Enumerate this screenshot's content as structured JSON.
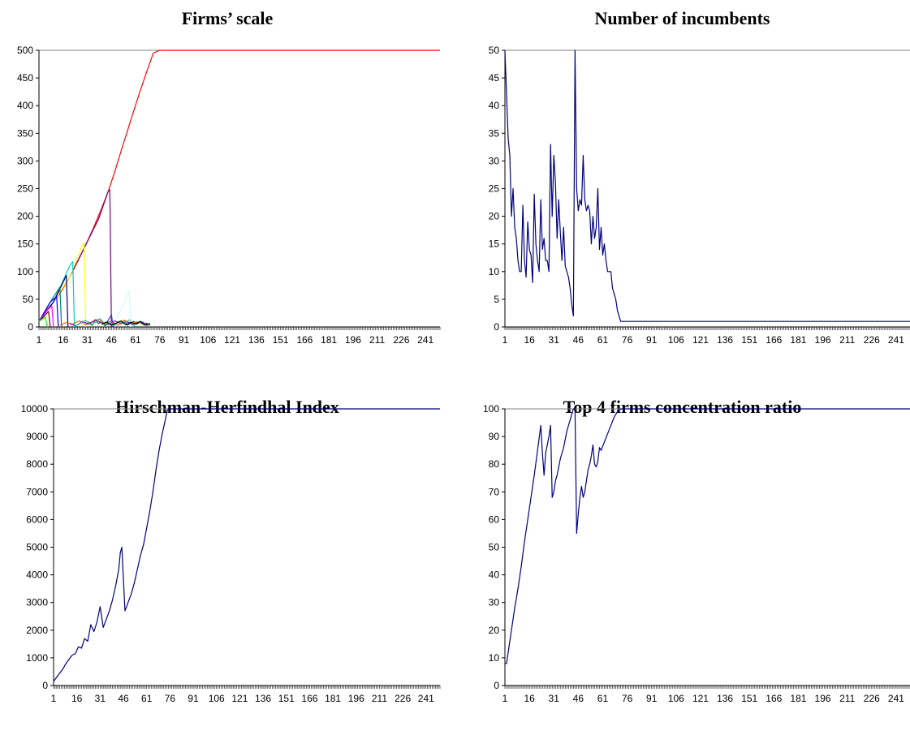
{
  "chart_data": [
    {
      "id": "firms-scale",
      "type": "line",
      "title": "Firms’ scale",
      "xlabel": "",
      "ylabel": "",
      "ylim": [
        0,
        500
      ],
      "yticks": [
        0,
        50,
        100,
        150,
        200,
        250,
        300,
        350,
        400,
        450,
        500
      ],
      "xlim": [
        1,
        250
      ],
      "xtick_labels": [
        "1",
        "16",
        "31",
        "46",
        "61",
        "76",
        "91",
        "106",
        "121",
        "136",
        "151",
        "166",
        "181",
        "196",
        "211",
        "226",
        "241"
      ],
      "grid": "top border only",
      "legend": "none",
      "series": [
        {
          "color": "#ff0000",
          "x": [
            1,
            5,
            10,
            15,
            20,
            25,
            30,
            35,
            40,
            44,
            48,
            52,
            56,
            60,
            64,
            68,
            72,
            76,
            250
          ],
          "y": [
            10,
            28,
            45,
            65,
            90,
            118,
            148,
            180,
            215,
            245,
            280,
            318,
            355,
            392,
            428,
            462,
            495,
            500,
            500
          ]
        },
        {
          "color": "#800080",
          "x": [
            1,
            10,
            20,
            30,
            38,
            44,
            45,
            46
          ],
          "y": [
            10,
            45,
            90,
            148,
            195,
            245,
            248,
            0
          ]
        },
        {
          "color": "#ffff00",
          "x": [
            1,
            10,
            20,
            28,
            29,
            30
          ],
          "y": [
            10,
            45,
            90,
            148,
            152,
            0
          ]
        },
        {
          "color": "#00cccc",
          "x": [
            1,
            10,
            20,
            22,
            23
          ],
          "y": [
            10,
            45,
            110,
            118,
            0
          ]
        },
        {
          "color": "#000080",
          "x": [
            1,
            10,
            18,
            19
          ],
          "y": [
            10,
            45,
            93,
            0
          ]
        },
        {
          "color": "#008080",
          "x": [
            1,
            8,
            14,
            15
          ],
          "y": [
            10,
            45,
            72,
            0
          ]
        },
        {
          "color": "#0000ff",
          "x": [
            1,
            8,
            12,
            13
          ],
          "y": [
            10,
            45,
            55,
            0
          ]
        },
        {
          "color": "#ff00ff",
          "x": [
            1,
            6,
            9,
            10
          ],
          "y": [
            10,
            30,
            38,
            0
          ]
        },
        {
          "color": "#800000",
          "x": [
            1,
            5,
            7,
            8
          ],
          "y": [
            10,
            22,
            28,
            0
          ]
        },
        {
          "color": "#00ff00",
          "x": [
            1,
            3,
            5,
            6
          ],
          "y": [
            10,
            14,
            18,
            0
          ]
        },
        {
          "color": "#ccffff",
          "x": [
            46,
            50,
            54,
            57,
            58
          ],
          "y": [
            2,
            20,
            45,
            65,
            0
          ]
        },
        {
          "color": "#3333cc",
          "x": [
            42,
            44,
            46,
            47
          ],
          "y": [
            2,
            12,
            22,
            0
          ]
        },
        {
          "color": "#008000",
          "x": [
            30,
            32,
            34,
            36,
            38,
            40,
            42,
            44,
            46,
            48,
            50,
            52,
            54,
            56,
            58,
            60,
            62,
            64,
            66,
            68,
            70
          ],
          "y": [
            4,
            9,
            3,
            12,
            6,
            10,
            2,
            8,
            11,
            4,
            9,
            6,
            12,
            3,
            8,
            10,
            5,
            9,
            4,
            7,
            3
          ]
        },
        {
          "color": "#ff6600",
          "x": [
            14,
            18,
            22,
            26,
            30,
            34,
            38,
            42,
            46,
            50,
            54,
            58,
            62,
            66,
            70
          ],
          "y": [
            3,
            8,
            5,
            11,
            4,
            9,
            14,
            6,
            10,
            3,
            12,
            7,
            9,
            4,
            6
          ]
        },
        {
          "color": "#9900cc",
          "x": [
            20,
            24,
            28,
            32,
            36,
            40,
            44,
            48,
            52,
            56,
            60,
            64,
            68
          ],
          "y": [
            6,
            2,
            10,
            5,
            13,
            7,
            4,
            11,
            6,
            9,
            3,
            10,
            5
          ]
        },
        {
          "color": "#33cc99",
          "x": [
            24,
            27,
            30,
            33,
            36,
            39,
            42,
            45,
            48,
            51,
            54,
            57,
            60,
            63,
            66,
            69
          ],
          "y": [
            2,
            7,
            12,
            4,
            8,
            15,
            5,
            9,
            3,
            10,
            6,
            13,
            4,
            8,
            5,
            2
          ]
        },
        {
          "color": "#000000",
          "x": [
            40,
            43,
            46,
            49,
            52,
            55,
            58,
            61,
            64,
            67,
            70
          ],
          "y": [
            5,
            9,
            3,
            7,
            11,
            4,
            8,
            6,
            10,
            3,
            6
          ]
        }
      ]
    },
    {
      "id": "number-of-incumbents",
      "type": "line",
      "title": "Number of incumbents",
      "xlabel": "",
      "ylabel": "",
      "ylim": [
        0,
        50
      ],
      "yticks": [
        0,
        5,
        10,
        15,
        20,
        25,
        30,
        35,
        40,
        45,
        50
      ],
      "xlim": [
        1,
        250
      ],
      "xtick_labels": [
        "1",
        "16",
        "31",
        "46",
        "61",
        "76",
        "91",
        "106",
        "121",
        "136",
        "151",
        "166",
        "181",
        "196",
        "211",
        "226",
        "241"
      ],
      "grid": "top border only",
      "legend": "none",
      "series": [
        {
          "color": "#000080",
          "x": [
            1,
            3,
            4,
            5,
            6,
            7,
            8,
            9,
            10,
            11,
            12,
            13,
            14,
            15,
            16,
            17,
            18,
            19,
            20,
            21,
            22,
            23,
            24,
            25,
            26,
            27,
            28,
            29,
            30,
            31,
            32,
            33,
            34,
            35,
            36,
            37,
            38,
            39,
            40,
            41,
            42,
            43,
            44,
            45,
            46,
            47,
            48,
            49,
            50,
            51,
            52,
            53,
            54,
            55,
            56,
            57,
            58,
            59,
            60,
            61,
            62,
            63,
            64,
            65,
            66,
            67,
            68,
            69,
            70,
            71,
            72,
            73,
            74,
            250
          ],
          "y": [
            50,
            34,
            31,
            20,
            25,
            18,
            16,
            12,
            10,
            10,
            22,
            12,
            9,
            19,
            14,
            13,
            8,
            24,
            15,
            12,
            10,
            23,
            14,
            16,
            12,
            12,
            10,
            33,
            20,
            31,
            26,
            16,
            23,
            17,
            12,
            18,
            11,
            10,
            9,
            7,
            4,
            2,
            50,
            25,
            21,
            23,
            22,
            31,
            23,
            21,
            22,
            21,
            15,
            20,
            16,
            18,
            25,
            14,
            18,
            13,
            15,
            12,
            10,
            10,
            10,
            7,
            6,
            5,
            3,
            2,
            1,
            1,
            1,
            1
          ]
        }
      ]
    },
    {
      "id": "hirschman-herfindhal-index",
      "type": "line",
      "title": "Hirschman-Herfindhal Index",
      "xlabel": "",
      "ylabel": "",
      "ylim": [
        0,
        10000
      ],
      "yticks": [
        0,
        1000,
        2000,
        3000,
        4000,
        5000,
        6000,
        7000,
        8000,
        9000,
        10000
      ],
      "xlim": [
        1,
        250
      ],
      "xtick_labels": [
        "1",
        "16",
        "31",
        "46",
        "61",
        "76",
        "91",
        "106",
        "121",
        "136",
        "151",
        "166",
        "181",
        "196",
        "211",
        "226",
        "241"
      ],
      "grid": "top border only",
      "legend": "none",
      "series": [
        {
          "color": "#000080",
          "x": [
            1,
            3,
            5,
            7,
            9,
            11,
            13,
            15,
            17,
            19,
            21,
            23,
            25,
            27,
            29,
            31,
            33,
            35,
            37,
            39,
            41,
            43,
            44,
            45,
            47,
            49,
            51,
            53,
            55,
            57,
            59,
            61,
            63,
            65,
            67,
            69,
            71,
            73,
            74,
            75,
            250
          ],
          "y": [
            150,
            300,
            450,
            600,
            800,
            950,
            1100,
            1150,
            1400,
            1350,
            1700,
            1600,
            2200,
            1950,
            2300,
            2850,
            2100,
            2400,
            2700,
            3100,
            3600,
            4200,
            4800,
            5000,
            2700,
            3000,
            3300,
            3700,
            4200,
            4700,
            5100,
            5700,
            6300,
            7000,
            7800,
            8500,
            9100,
            9600,
            9900,
            10000,
            10000
          ]
        }
      ]
    },
    {
      "id": "top4-concentration-ratio",
      "type": "line",
      "title": "Top 4 firms concentration ratio",
      "xlabel": "",
      "ylabel": "",
      "ylim": [
        0,
        100
      ],
      "yticks": [
        0,
        10,
        20,
        30,
        40,
        50,
        60,
        70,
        80,
        90,
        100
      ],
      "xlim": [
        1,
        250
      ],
      "xtick_labels": [
        "1",
        "16",
        "31",
        "46",
        "61",
        "76",
        "91",
        "106",
        "121",
        "136",
        "151",
        "166",
        "181",
        "196",
        "211",
        "226",
        "241"
      ],
      "grid": "top border only",
      "legend": "none",
      "series": [
        {
          "color": "#000080",
          "x": [
            1,
            2,
            3,
            5,
            7,
            9,
            11,
            13,
            15,
            17,
            19,
            21,
            23,
            24,
            25,
            26,
            27,
            28,
            29,
            30,
            31,
            32,
            33,
            35,
            37,
            39,
            41,
            43,
            44,
            45,
            46,
            47,
            48,
            49,
            50,
            51,
            52,
            53,
            54,
            55,
            56,
            57,
            58,
            59,
            60,
            62,
            64,
            66,
            68,
            70,
            72,
            74,
            250
          ],
          "y": [
            8,
            8,
            12,
            20,
            28,
            35,
            43,
            52,
            60,
            68,
            76,
            85,
            94,
            84,
            76,
            84,
            87,
            90,
            94,
            68,
            70,
            74,
            76,
            82,
            86,
            92,
            96,
            100,
            100,
            55,
            62,
            68,
            72,
            68,
            70,
            74,
            78,
            80,
            83,
            87,
            80,
            79,
            81,
            86,
            85,
            88,
            91,
            94,
            97,
            99,
            100,
            100,
            100
          ]
        }
      ]
    }
  ]
}
